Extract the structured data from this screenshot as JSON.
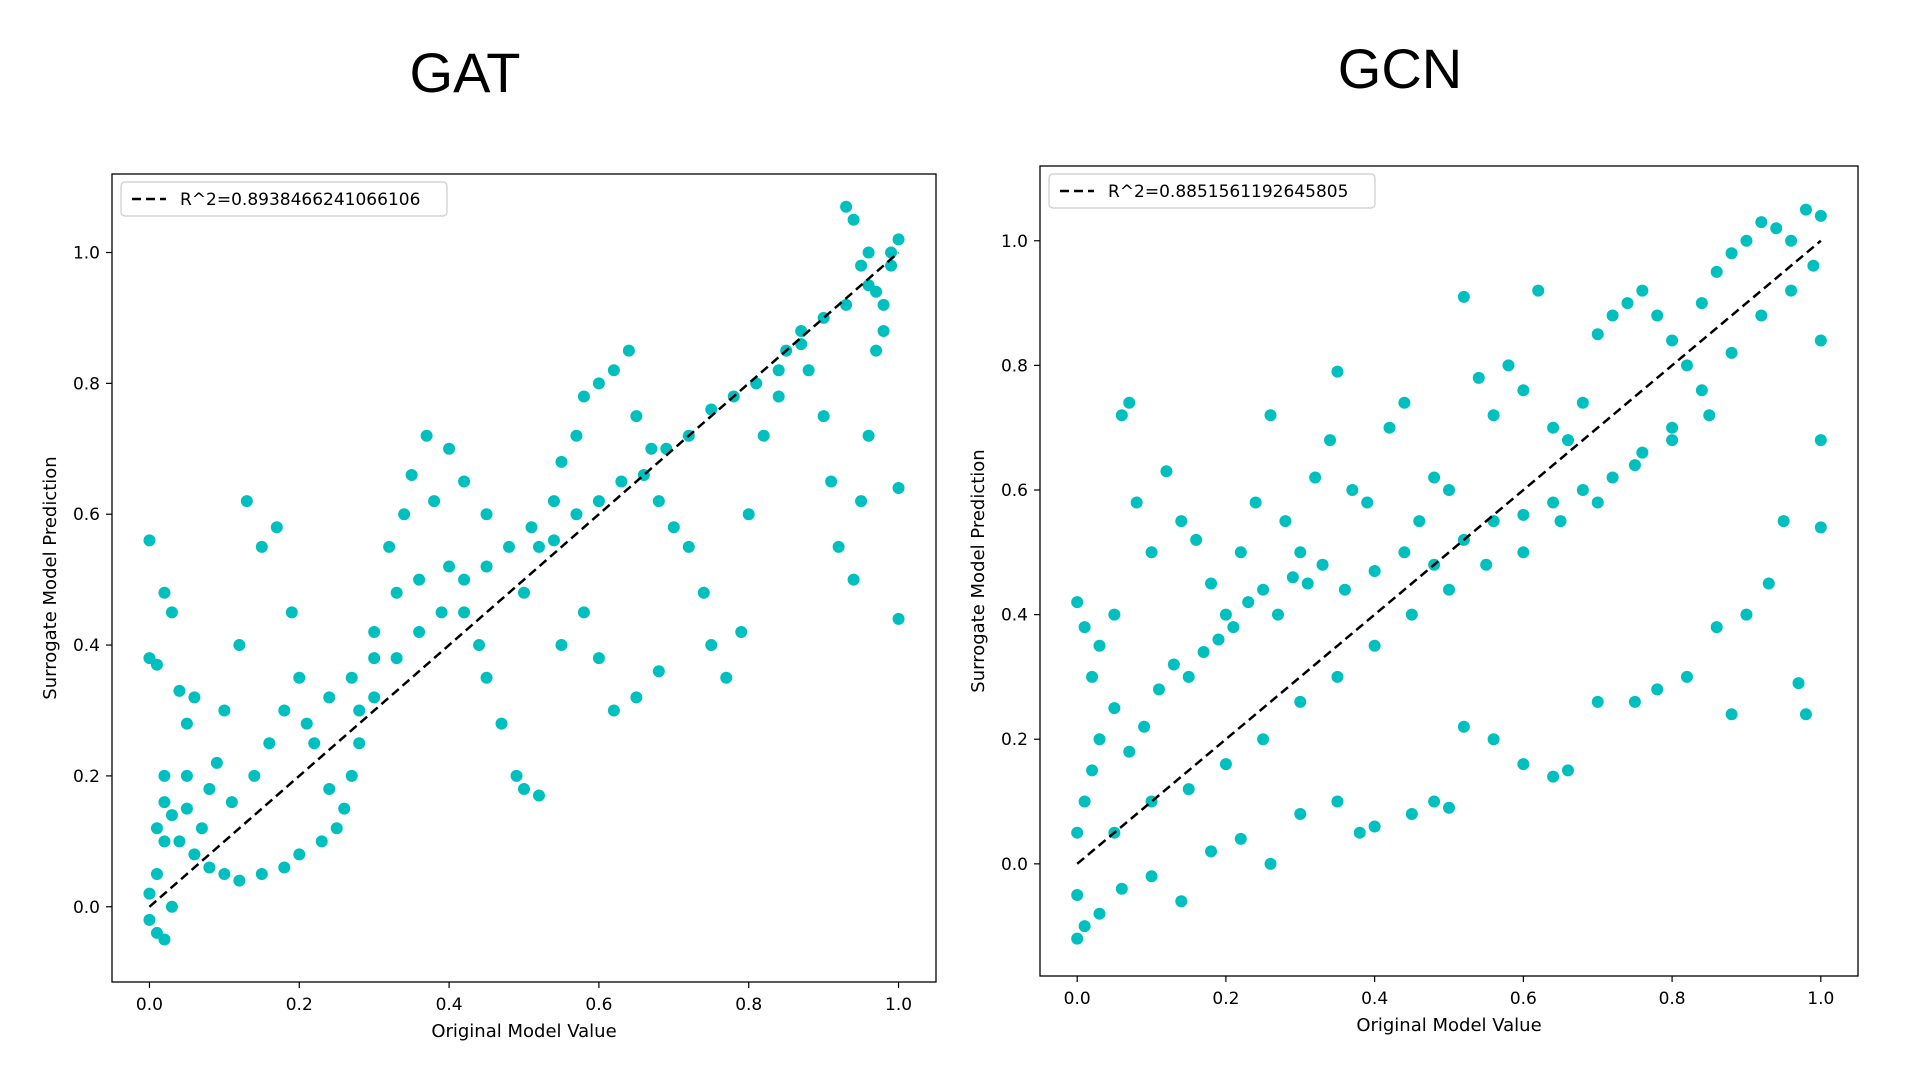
{
  "titles": {
    "left": "GAT",
    "right": "GCN"
  },
  "chart_data": [
    {
      "type": "scatter",
      "title": "GAT",
      "xlabel": "Original Model Value",
      "ylabel": "Surrogate Model Prediction",
      "xlim": [
        -0.05,
        1.05
      ],
      "ylim": [
        -0.115,
        1.12
      ],
      "xticks": [
        "0.0",
        "0.2",
        "0.4",
        "0.6",
        "0.8",
        "1.0"
      ],
      "yticks": [
        "0.0",
        "0.2",
        "0.4",
        "0.6",
        "0.8",
        "1.0"
      ],
      "legend": {
        "position": "top-left",
        "label": "R^2=0.8938466241066106"
      },
      "fit_line": {
        "x": [
          0.0,
          1.0
        ],
        "y": [
          0.0,
          1.0
        ],
        "style": "dashed",
        "color": "#000000"
      },
      "marker_color": "#00BFBF",
      "points": [
        [
          0.0,
          0.56
        ],
        [
          0.0,
          0.38
        ],
        [
          0.01,
          0.37
        ],
        [
          0.02,
          0.48
        ],
        [
          0.03,
          0.45
        ],
        [
          0.04,
          0.33
        ],
        [
          0.05,
          0.28
        ],
        [
          0.06,
          0.32
        ],
        [
          0.02,
          0.1
        ],
        [
          0.01,
          0.05
        ],
        [
          0.0,
          0.02
        ],
        [
          0.0,
          -0.02
        ],
        [
          0.01,
          -0.04
        ],
        [
          0.02,
          -0.05
        ],
        [
          0.03,
          0.0
        ],
        [
          0.02,
          0.2
        ],
        [
          0.05,
          0.15
        ],
        [
          0.07,
          0.12
        ],
        [
          0.09,
          0.22
        ],
        [
          0.1,
          0.3
        ],
        [
          0.12,
          0.4
        ],
        [
          0.13,
          0.62
        ],
        [
          0.15,
          0.55
        ],
        [
          0.17,
          0.58
        ],
        [
          0.19,
          0.45
        ],
        [
          0.2,
          0.35
        ],
        [
          0.22,
          0.25
        ],
        [
          0.24,
          0.18
        ],
        [
          0.25,
          0.12
        ],
        [
          0.27,
          0.2
        ],
        [
          0.28,
          0.3
        ],
        [
          0.3,
          0.42
        ],
        [
          0.32,
          0.55
        ],
        [
          0.34,
          0.6
        ],
        [
          0.35,
          0.66
        ],
        [
          0.37,
          0.72
        ],
        [
          0.38,
          0.62
        ],
        [
          0.4,
          0.52
        ],
        [
          0.42,
          0.45
        ],
        [
          0.44,
          0.4
        ],
        [
          0.45,
          0.35
        ],
        [
          0.47,
          0.28
        ],
        [
          0.49,
          0.2
        ],
        [
          0.5,
          0.18
        ],
        [
          0.52,
          0.17
        ],
        [
          0.5,
          0.48
        ],
        [
          0.52,
          0.55
        ],
        [
          0.54,
          0.62
        ],
        [
          0.55,
          0.68
        ],
        [
          0.57,
          0.72
        ],
        [
          0.58,
          0.78
        ],
        [
          0.6,
          0.8
        ],
        [
          0.62,
          0.82
        ],
        [
          0.64,
          0.85
        ],
        [
          0.65,
          0.75
        ],
        [
          0.67,
          0.7
        ],
        [
          0.68,
          0.62
        ],
        [
          0.7,
          0.58
        ],
        [
          0.72,
          0.55
        ],
        [
          0.74,
          0.48
        ],
        [
          0.75,
          0.4
        ],
        [
          0.77,
          0.35
        ],
        [
          0.79,
          0.42
        ],
        [
          0.8,
          0.6
        ],
        [
          0.82,
          0.72
        ],
        [
          0.84,
          0.78
        ],
        [
          0.85,
          0.85
        ],
        [
          0.87,
          0.88
        ],
        [
          0.88,
          0.82
        ],
        [
          0.9,
          0.75
        ],
        [
          0.91,
          0.65
        ],
        [
          0.92,
          0.55
        ],
        [
          0.94,
          0.5
        ],
        [
          0.95,
          0.62
        ],
        [
          0.96,
          0.72
        ],
        [
          0.97,
          0.85
        ],
        [
          0.98,
          0.92
        ],
        [
          0.99,
          0.98
        ],
        [
          1.0,
          1.02
        ],
        [
          1.0,
          0.44
        ],
        [
          1.0,
          0.64
        ],
        [
          0.93,
          1.07
        ],
        [
          0.94,
          1.05
        ],
        [
          0.95,
          0.98
        ],
        [
          0.96,
          1.0
        ],
        [
          0.97,
          0.94
        ],
        [
          0.98,
          0.88
        ],
        [
          0.6,
          0.38
        ],
        [
          0.62,
          0.3
        ],
        [
          0.65,
          0.32
        ],
        [
          0.68,
          0.36
        ],
        [
          0.58,
          0.45
        ],
        [
          0.55,
          0.4
        ],
        [
          0.45,
          0.6
        ],
        [
          0.42,
          0.65
        ],
        [
          0.4,
          0.7
        ],
        [
          0.36,
          0.5
        ],
        [
          0.33,
          0.48
        ],
        [
          0.3,
          0.38
        ],
        [
          0.28,
          0.25
        ],
        [
          0.26,
          0.15
        ],
        [
          0.23,
          0.1
        ],
        [
          0.2,
          0.08
        ],
        [
          0.18,
          0.06
        ],
        [
          0.15,
          0.05
        ],
        [
          0.12,
          0.04
        ],
        [
          0.1,
          0.05
        ],
        [
          0.08,
          0.06
        ],
        [
          0.06,
          0.08
        ],
        [
          0.04,
          0.1
        ],
        [
          0.03,
          0.14
        ],
        [
          0.01,
          0.12
        ],
        [
          0.02,
          0.16
        ],
        [
          0.05,
          0.2
        ],
        [
          0.08,
          0.18
        ],
        [
          0.11,
          0.16
        ],
        [
          0.14,
          0.2
        ],
        [
          0.16,
          0.25
        ],
        [
          0.18,
          0.3
        ],
        [
          0.21,
          0.28
        ],
        [
          0.24,
          0.32
        ],
        [
          0.27,
          0.35
        ],
        [
          0.3,
          0.32
        ],
        [
          0.33,
          0.38
        ],
        [
          0.36,
          0.42
        ],
        [
          0.39,
          0.45
        ],
        [
          0.42,
          0.5
        ],
        [
          0.45,
          0.52
        ],
        [
          0.48,
          0.55
        ],
        [
          0.51,
          0.58
        ],
        [
          0.54,
          0.56
        ],
        [
          0.57,
          0.6
        ],
        [
          0.6,
          0.62
        ],
        [
          0.63,
          0.65
        ],
        [
          0.66,
          0.66
        ],
        [
          0.69,
          0.7
        ],
        [
          0.72,
          0.72
        ],
        [
          0.75,
          0.76
        ],
        [
          0.78,
          0.78
        ],
        [
          0.81,
          0.8
        ],
        [
          0.84,
          0.82
        ],
        [
          0.87,
          0.86
        ],
        [
          0.9,
          0.9
        ],
        [
          0.93,
          0.92
        ],
        [
          0.96,
          0.95
        ],
        [
          0.99,
          1.0
        ]
      ]
    },
    {
      "type": "scatter",
      "title": "GCN",
      "xlabel": "Original Model Value",
      "ylabel": "Surrogate Model Prediction",
      "xlim": [
        -0.05,
        1.05
      ],
      "ylim": [
        -0.18,
        1.12
      ],
      "xticks": [
        "0.0",
        "0.2",
        "0.4",
        "0.6",
        "0.8",
        "1.0"
      ],
      "yticks": [
        "0.0",
        "0.2",
        "0.4",
        "0.6",
        "0.8",
        "1.0"
      ],
      "legend": {
        "position": "top-left",
        "label": "R^2=0.8851561192645805"
      },
      "fit_line": {
        "x": [
          0.0,
          1.0
        ],
        "y": [
          0.0,
          1.0
        ],
        "style": "dashed",
        "color": "#000000"
      },
      "marker_color": "#00BFBF",
      "points": [
        [
          0.0,
          0.42
        ],
        [
          0.01,
          0.38
        ],
        [
          0.02,
          0.3
        ],
        [
          0.03,
          0.35
        ],
        [
          0.05,
          0.4
        ],
        [
          0.06,
          0.72
        ],
        [
          0.07,
          0.74
        ],
        [
          0.08,
          0.58
        ],
        [
          0.1,
          0.5
        ],
        [
          0.12,
          0.63
        ],
        [
          0.14,
          0.55
        ],
        [
          0.16,
          0.52
        ],
        [
          0.18,
          0.45
        ],
        [
          0.2,
          0.4
        ],
        [
          0.22,
          0.5
        ],
        [
          0.24,
          0.58
        ],
        [
          0.26,
          0.72
        ],
        [
          0.28,
          0.55
        ],
        [
          0.3,
          0.5
        ],
        [
          0.32,
          0.62
        ],
        [
          0.34,
          0.68
        ],
        [
          0.35,
          0.79
        ],
        [
          0.37,
          0.6
        ],
        [
          0.39,
          0.58
        ],
        [
          0.42,
          0.7
        ],
        [
          0.44,
          0.74
        ],
        [
          0.46,
          0.55
        ],
        [
          0.48,
          0.62
        ],
        [
          0.5,
          0.6
        ],
        [
          0.52,
          0.91
        ],
        [
          0.54,
          0.78
        ],
        [
          0.56,
          0.72
        ],
        [
          0.58,
          0.8
        ],
        [
          0.6,
          0.76
        ],
        [
          0.62,
          0.92
        ],
        [
          0.64,
          0.7
        ],
        [
          0.66,
          0.68
        ],
        [
          0.68,
          0.74
        ],
        [
          0.7,
          0.85
        ],
        [
          0.72,
          0.88
        ],
        [
          0.74,
          0.9
        ],
        [
          0.76,
          0.92
        ],
        [
          0.78,
          0.88
        ],
        [
          0.8,
          0.84
        ],
        [
          0.82,
          0.8
        ],
        [
          0.84,
          0.9
        ],
        [
          0.86,
          0.95
        ],
        [
          0.88,
          0.98
        ],
        [
          0.9,
          1.0
        ],
        [
          0.92,
          1.03
        ],
        [
          0.94,
          1.02
        ],
        [
          0.96,
          1.0
        ],
        [
          0.98,
          1.05
        ],
        [
          1.0,
          1.04
        ],
        [
          1.0,
          0.84
        ],
        [
          1.0,
          0.68
        ],
        [
          1.0,
          0.54
        ],
        [
          0.97,
          0.29
        ],
        [
          0.98,
          0.24
        ],
        [
          0.88,
          0.24
        ],
        [
          0.95,
          0.55
        ],
        [
          0.93,
          0.45
        ],
        [
          0.9,
          0.4
        ],
        [
          0.86,
          0.38
        ],
        [
          0.82,
          0.3
        ],
        [
          0.78,
          0.28
        ],
        [
          0.75,
          0.26
        ],
        [
          0.7,
          0.26
        ],
        [
          0.66,
          0.15
        ],
        [
          0.64,
          0.14
        ],
        [
          0.6,
          0.16
        ],
        [
          0.56,
          0.2
        ],
        [
          0.52,
          0.22
        ],
        [
          0.5,
          0.09
        ],
        [
          0.48,
          0.1
        ],
        [
          0.45,
          0.08
        ],
        [
          0.4,
          0.06
        ],
        [
          0.38,
          0.05
        ],
        [
          0.35,
          0.1
        ],
        [
          0.3,
          0.08
        ],
        [
          0.26,
          0.0
        ],
        [
          0.22,
          0.04
        ],
        [
          0.18,
          0.02
        ],
        [
          0.14,
          -0.06
        ],
        [
          0.1,
          -0.02
        ],
        [
          0.06,
          -0.04
        ],
        [
          0.03,
          -0.08
        ],
        [
          0.01,
          -0.1
        ],
        [
          0.0,
          -0.12
        ],
        [
          0.0,
          -0.05
        ],
        [
          0.0,
          0.05
        ],
        [
          0.01,
          0.1
        ],
        [
          0.02,
          0.15
        ],
        [
          0.03,
          0.2
        ],
        [
          0.05,
          0.25
        ],
        [
          0.07,
          0.18
        ],
        [
          0.09,
          0.22
        ],
        [
          0.11,
          0.28
        ],
        [
          0.13,
          0.32
        ],
        [
          0.15,
          0.3
        ],
        [
          0.17,
          0.34
        ],
        [
          0.19,
          0.36
        ],
        [
          0.21,
          0.38
        ],
        [
          0.23,
          0.42
        ],
        [
          0.25,
          0.44
        ],
        [
          0.27,
          0.4
        ],
        [
          0.29,
          0.46
        ],
        [
          0.31,
          0.45
        ],
        [
          0.33,
          0.48
        ],
        [
          0.36,
          0.44
        ],
        [
          0.4,
          0.47
        ],
        [
          0.44,
          0.5
        ],
        [
          0.48,
          0.48
        ],
        [
          0.52,
          0.52
        ],
        [
          0.56,
          0.55
        ],
        [
          0.6,
          0.56
        ],
        [
          0.64,
          0.58
        ],
        [
          0.68,
          0.6
        ],
        [
          0.72,
          0.62
        ],
        [
          0.76,
          0.66
        ],
        [
          0.8,
          0.7
        ],
        [
          0.84,
          0.76
        ],
        [
          0.88,
          0.82
        ],
        [
          0.92,
          0.88
        ],
        [
          0.96,
          0.92
        ],
        [
          0.99,
          0.96
        ],
        [
          0.05,
          0.05
        ],
        [
          0.1,
          0.1
        ],
        [
          0.15,
          0.12
        ],
        [
          0.2,
          0.16
        ],
        [
          0.25,
          0.2
        ],
        [
          0.3,
          0.26
        ],
        [
          0.35,
          0.3
        ],
        [
          0.4,
          0.35
        ],
        [
          0.45,
          0.4
        ],
        [
          0.5,
          0.44
        ],
        [
          0.55,
          0.48
        ],
        [
          0.6,
          0.5
        ],
        [
          0.65,
          0.55
        ],
        [
          0.7,
          0.58
        ],
        [
          0.75,
          0.64
        ],
        [
          0.8,
          0.68
        ],
        [
          0.85,
          0.72
        ]
      ]
    }
  ]
}
